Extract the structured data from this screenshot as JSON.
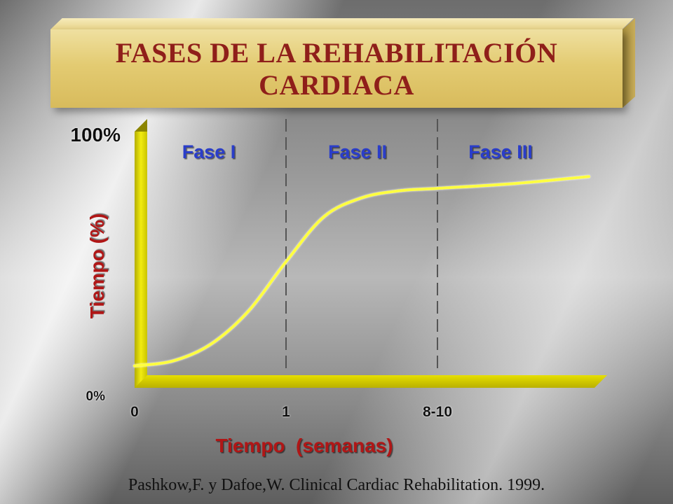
{
  "title": {
    "line1": "FASES DE LA REHABILITACIÓN",
    "line2": "CARDIACA"
  },
  "citation": "Pashkow,F.  y Dafoe,W. Clinical Cardiac Rehabilitation. 1999.",
  "colors": {
    "title_text": "#8f1f1a",
    "axis_yellow": "#e6e000",
    "curve": "#ffff40",
    "phase_label": "#2b3ec9",
    "axis_label": "#b01818"
  },
  "chart_data": {
    "type": "line",
    "title": "FASES DE LA REHABILITACIÓN CARDIACA",
    "xlabel": "Tiempo  (semanas)",
    "ylabel": "Tiempo (%)",
    "y_tick_labels": [
      "0%",
      "100%"
    ],
    "x_tick_labels": [
      "0",
      "1",
      "8-10"
    ],
    "ylim": [
      0,
      100
    ],
    "grid": false,
    "phases": [
      {
        "label": "Fase I",
        "from": "0",
        "to": "1"
      },
      {
        "label": "Fase II",
        "from": "1",
        "to": "8-10"
      },
      {
        "label": "Fase III",
        "from": "8-10",
        "to": ""
      }
    ],
    "series": [
      {
        "x": [
          0,
          0.25,
          0.5,
          0.75,
          1.0,
          1.25,
          1.5,
          1.75,
          2.0,
          2.5,
          3.0
        ],
        "values": [
          1,
          3,
          10,
          24,
          45,
          64,
          72,
          75,
          76,
          78,
          81
        ]
      }
    ]
  }
}
